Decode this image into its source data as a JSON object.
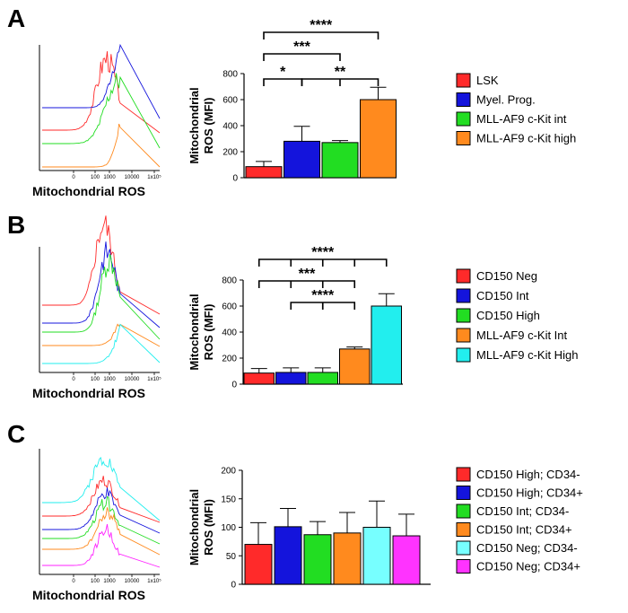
{
  "figure": {
    "panels": [
      {
        "letter": "A",
        "histogram_xlabel": "Mitochondrial ROS",
        "histogram_ticks": [
          "0",
          "100",
          "1000",
          "10000",
          "1x10⁵"
        ],
        "histogram_colors": [
          "#ff2a2a",
          "#1414dc",
          "#22dd22",
          "#ff8a1e"
        ]
      },
      {
        "letter": "B",
        "histogram_xlabel": "Mitochondrial ROS",
        "histogram_ticks": [
          "0",
          "100",
          "1000",
          "10000",
          "1x10⁵"
        ],
        "histogram_colors": [
          "#ff2a2a",
          "#1414dc",
          "#22dd22",
          "#ff8a1e",
          "#22eeee"
        ]
      },
      {
        "letter": "C",
        "histogram_xlabel": "Mitochondrial ROS",
        "histogram_ticks": [
          "0",
          "100",
          "1000",
          "10000",
          "1x10⁵"
        ],
        "histogram_colors": [
          "#ff2a2a",
          "#1414dc",
          "#22dd22",
          "#ff8a1e",
          "#22eeee",
          "#ff22ff"
        ]
      }
    ]
  },
  "chart_data": [
    {
      "type": "bar",
      "panel": "A",
      "ylabel": [
        "Mitochondrial",
        "ROS (MFI)"
      ],
      "ylim": [
        0,
        800
      ],
      "yticks": [
        0,
        200,
        400,
        600,
        800
      ],
      "categories": [
        "LSK",
        "Myel. Prog.",
        "MLL-AF9 c-Kit int",
        "MLL-AF9 c-Kit high"
      ],
      "values": [
        85,
        280,
        270,
        600
      ],
      "errors": [
        40,
        115,
        15,
        95
      ],
      "colors": [
        "#ff2a2a",
        "#1414dc",
        "#22dd22",
        "#ff8a1e"
      ],
      "significance": [
        {
          "from": 0,
          "to": 1,
          "label": "*",
          "group_left": false,
          "group_right": false
        },
        {
          "from": 1,
          "to": 3,
          "label": "**",
          "group_left": true,
          "group_right": false
        },
        {
          "from": 0,
          "to": 2,
          "label": "***",
          "group_left": false,
          "group_right": false
        },
        {
          "from": 0,
          "to": 3,
          "label": "****",
          "group_left": false,
          "group_right": false
        }
      ]
    },
    {
      "type": "bar",
      "panel": "B",
      "ylabel": [
        "Mitochondrial",
        "ROS (MFI)"
      ],
      "ylim": [
        0,
        800
      ],
      "yticks": [
        0,
        200,
        400,
        600,
        800
      ],
      "categories": [
        "CD150 Neg",
        "CD150 Int",
        "CD150 High",
        "MLL-AF9 c-Kit Int",
        "MLL-AF9 c-Kit High"
      ],
      "values": [
        85,
        90,
        90,
        270,
        600
      ],
      "errors": [
        35,
        35,
        35,
        15,
        95
      ],
      "colors": [
        "#ff2a2a",
        "#1414dc",
        "#22dd22",
        "#ff8a1e",
        "#22eeee"
      ],
      "significance": [
        {
          "from": 1,
          "to": 3,
          "label": "****",
          "group_left": true,
          "group_right": false
        },
        {
          "from": 0,
          "to": 3,
          "label": "***",
          "group_left": true,
          "group_right": false
        },
        {
          "from": 0,
          "to": 4,
          "label": "****",
          "group_left": true,
          "group_right": false
        }
      ]
    },
    {
      "type": "bar",
      "panel": "C",
      "ylabel": [
        "Mitochondrial",
        "ROS (MFI)"
      ],
      "ylim": [
        0,
        200
      ],
      "yticks": [
        0,
        50,
        100,
        150,
        200
      ],
      "categories": [
        "CD150 High; CD34-",
        "CD150 High; CD34+",
        "CD150 Int; CD34-",
        "CD150 Int; CD34+",
        "CD150 Neg; CD34-",
        "CD150 Neg; CD34+"
      ],
      "values": [
        70,
        101,
        87,
        90,
        100,
        85
      ],
      "errors": [
        38,
        32,
        23,
        36,
        46,
        38
      ],
      "colors": [
        "#ff2a2a",
        "#1414dc",
        "#22dd22",
        "#ff8a1e",
        "#77ffff",
        "#ff33ff"
      ],
      "significance": []
    }
  ]
}
